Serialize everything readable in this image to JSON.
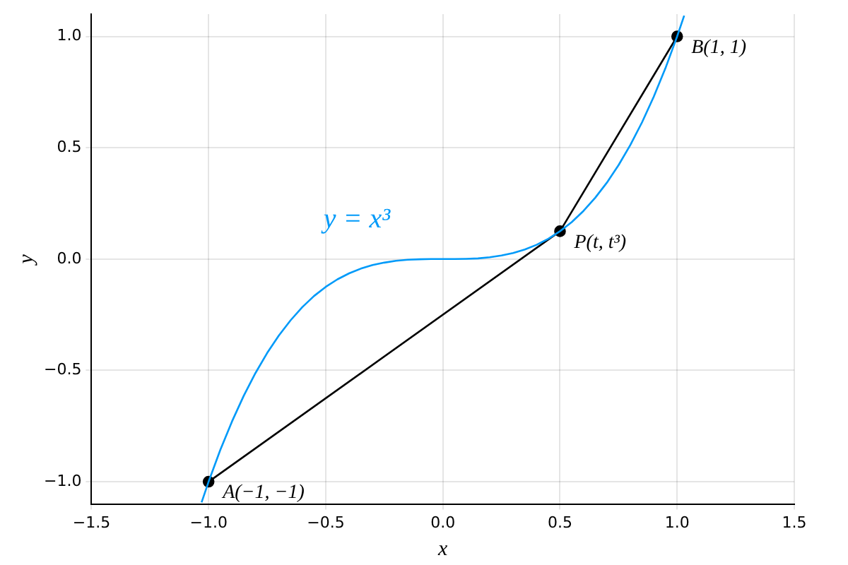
{
  "chart_data": {
    "type": "line",
    "xlabel": "x",
    "ylabel": "y",
    "xlim": [
      -1.5,
      1.5
    ],
    "ylim": [
      -1.1,
      1.1
    ],
    "xticks": [
      {
        "value": -1.5,
        "label": "−1.5"
      },
      {
        "value": -1,
        "label": "−1.0"
      },
      {
        "value": -0.5,
        "label": "−0.5"
      },
      {
        "value": 0,
        "label": "0.0"
      },
      {
        "value": 0.5,
        "label": "0.5"
      },
      {
        "value": 1,
        "label": "1.0"
      },
      {
        "value": 1.5,
        "label": "1.5"
      }
    ],
    "yticks": [
      {
        "value": -1,
        "label": "−1.0"
      },
      {
        "value": -0.5,
        "label": "−0.5"
      },
      {
        "value": 0,
        "label": "0.0"
      },
      {
        "value": 0.5,
        "label": "0.5"
      },
      {
        "value": 1,
        "label": "1.0"
      }
    ],
    "grid": true,
    "legend": false,
    "series": [
      {
        "name": "y = x³",
        "color": "#009af9",
        "marker": "none",
        "x": [
          -1.03,
          -1,
          -0.95,
          -0.9,
          -0.85,
          -0.8,
          -0.75,
          -0.7,
          -0.65,
          -0.6,
          -0.55,
          -0.5,
          -0.45,
          -0.4,
          -0.35,
          -0.3,
          -0.25,
          -0.2,
          -0.15,
          -0.1,
          -0.05,
          0,
          0.05,
          0.1,
          0.15,
          0.2,
          0.25,
          0.3,
          0.35,
          0.4,
          0.45,
          0.5,
          0.55,
          0.6,
          0.65,
          0.7,
          0.75,
          0.8,
          0.85,
          0.9,
          0.95,
          1,
          1.03
        ],
        "values": [
          -1.093,
          -1,
          -0.857,
          -0.729,
          -0.614,
          -0.512,
          -0.422,
          -0.343,
          -0.275,
          -0.216,
          -0.166,
          -0.125,
          -0.091,
          -0.064,
          -0.043,
          -0.027,
          -0.016,
          -0.008,
          -0.003,
          -0.001,
          0,
          0,
          0,
          0.001,
          0.003,
          0.008,
          0.016,
          0.027,
          0.043,
          0.064,
          0.091,
          0.125,
          0.166,
          0.216,
          0.275,
          0.343,
          0.422,
          0.512,
          0.614,
          0.729,
          0.857,
          1,
          1.093
        ]
      },
      {
        "color": "#000000",
        "marker": "circle",
        "x": [
          -1,
          0.5,
          1
        ],
        "values": [
          -1,
          0.125,
          1
        ]
      }
    ],
    "annotations": [
      {
        "text": "A(−1, −1)",
        "x": -1,
        "y": -1
      },
      {
        "text": "P(t, t³)",
        "x": 0.5,
        "y": 0.125
      },
      {
        "text": "B(1, 1)",
        "x": 1,
        "y": 1
      }
    ]
  }
}
